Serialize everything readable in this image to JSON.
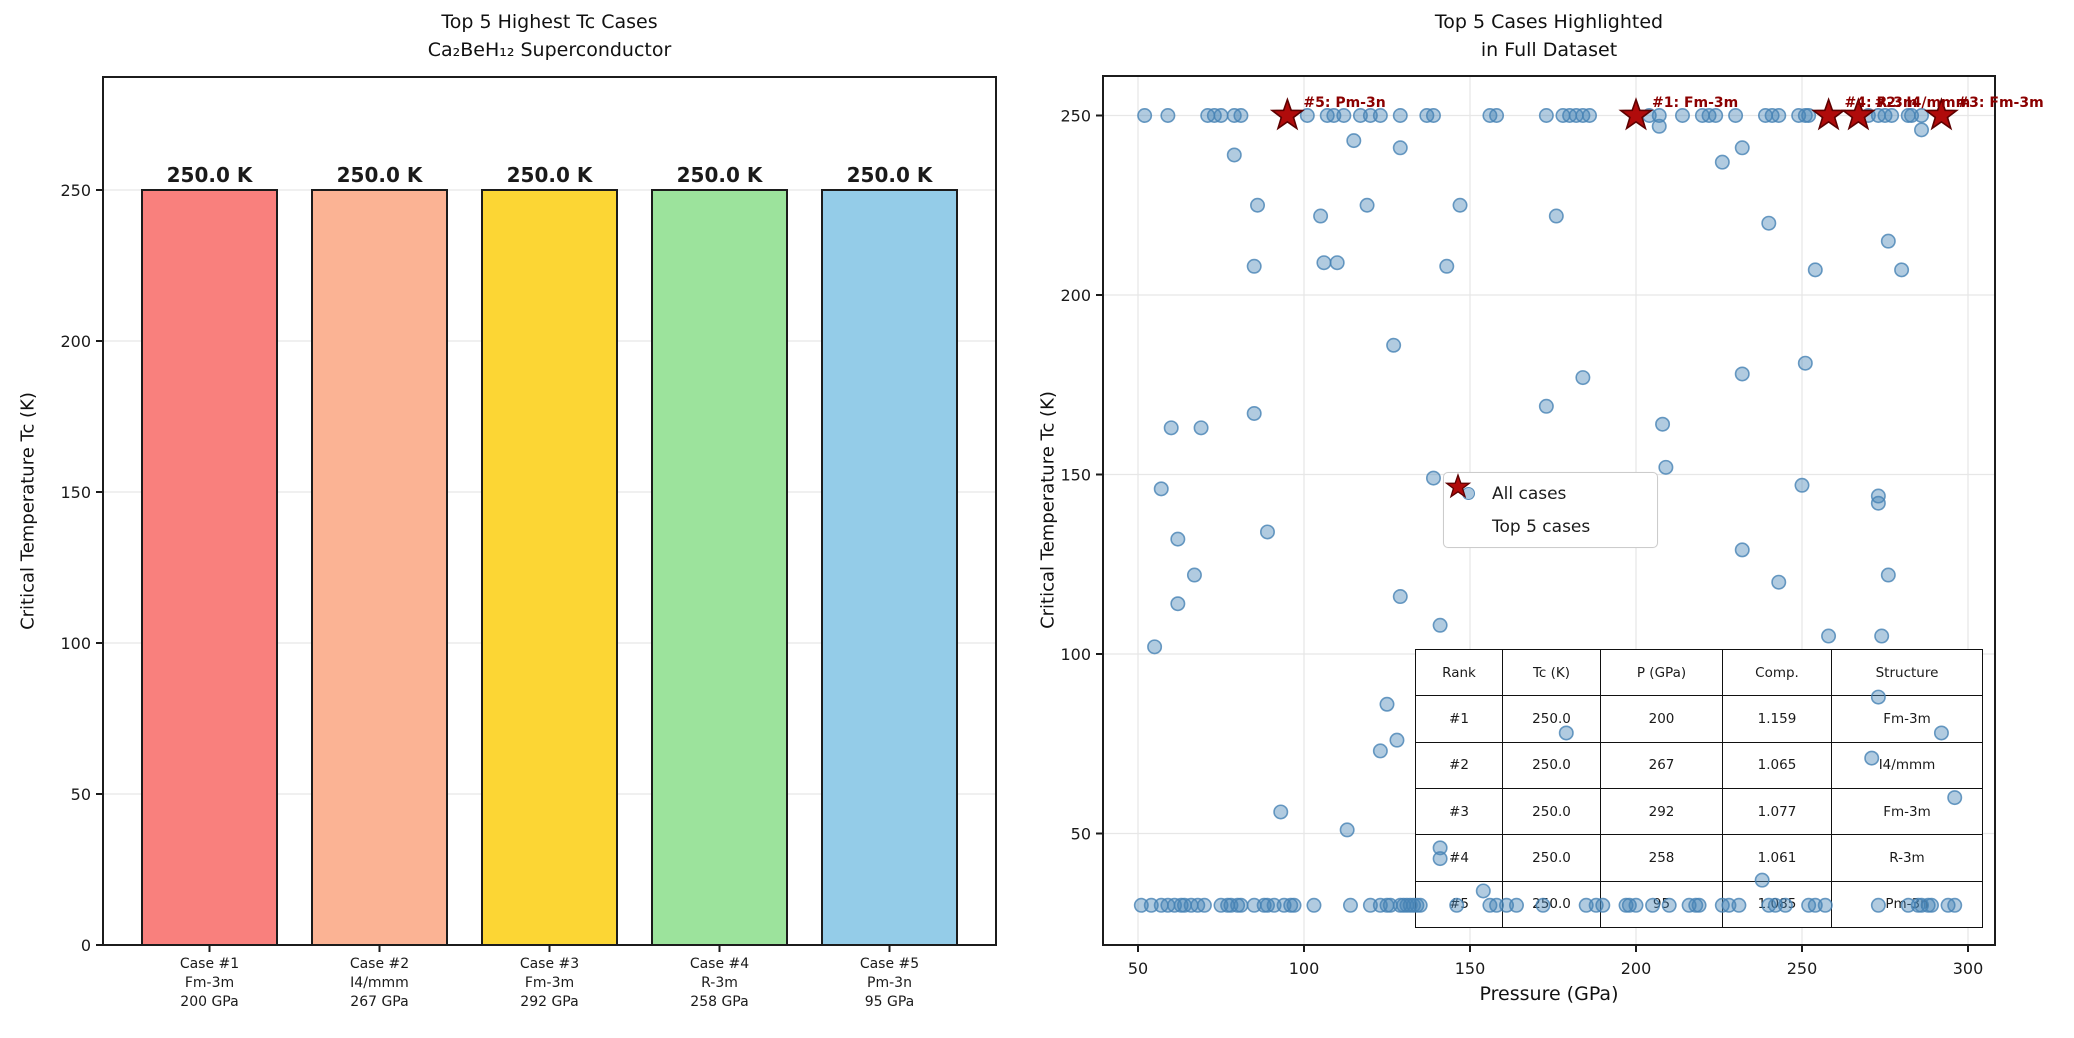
{
  "figure": {
    "background": "#ffffff"
  },
  "left_chart": {
    "title_line1": "Top 5 Highest Tc Cases",
    "title_line2": "Ca₂BeH₁₂ Superconductor",
    "ylabel": "Critical Temperature Tc (K)"
  },
  "right_chart": {
    "title_line1": "Top 5 Cases Highlighted",
    "title_line2": "in Full Dataset",
    "xlabel": "Pressure (GPa)",
    "ylabel": "Critical Temperature Tc (K)",
    "legend": {
      "all_cases": "All cases",
      "top5": "Top 5 cases"
    }
  },
  "colors": {
    "bar_edge": "#1c1c1c",
    "grid": "#e7e7e7",
    "spine": "#1c1c1c",
    "scatter_fill": "rgba(70,130,180,0.42)",
    "scatter_edge": "rgba(70,130,180,0.8)",
    "star_fill": "#b00b0b",
    "star_edge": "#5e0000",
    "annotation": "#8b0000"
  },
  "chart_data": [
    {
      "type": "bar",
      "title": "Top 5 Highest Tc Cases\nCa₂BeH₁₂ Superconductor",
      "ylabel": "Critical Temperature Tc (K)",
      "categories": [
        [
          "Case #1",
          "Fm-3m",
          "200 GPa"
        ],
        [
          "Case #2",
          "I4/mmm",
          "267 GPa"
        ],
        [
          "Case #3",
          "Fm-3m",
          "292 GPa"
        ],
        [
          "Case #4",
          "R-3m",
          "258 GPa"
        ],
        [
          "Case #5",
          "Pm-3n",
          "95 GPa"
        ]
      ],
      "values": [
        250.0,
        250.0,
        250.0,
        250.0,
        250.0
      ],
      "bar_labels": [
        "250.0 K",
        "250.0 K",
        "250.0 K",
        "250.0 K",
        "250.0 K"
      ],
      "bar_colors": [
        "#f9807d",
        "#fbb394",
        "#fcd634",
        "#9ce39c",
        "#94cce8"
      ],
      "yticks": [
        0,
        50,
        100,
        150,
        200,
        250
      ],
      "ylim": [
        0,
        287
      ],
      "grid": "horizontal"
    },
    {
      "type": "scatter",
      "title": "Top 5 Cases Highlighted\nin Full Dataset",
      "xlabel": "Pressure (GPa)",
      "ylabel": "Critical Temperature Tc (K)",
      "xticks": [
        50,
        100,
        150,
        200,
        250,
        300
      ],
      "yticks": [
        50,
        100,
        150,
        200,
        250
      ],
      "xlim": [
        39.5,
        308
      ],
      "ylim": [
        19,
        261
      ],
      "grid": "both",
      "legend_position": "center-left",
      "series": [
        {
          "name": "All cases",
          "marker": "circle",
          "points": [
            [
              52,
              250
            ],
            [
              59,
              250
            ],
            [
              71,
              250
            ],
            [
              73,
              250
            ],
            [
              75,
              250
            ],
            [
              79,
              250
            ],
            [
              81,
              250
            ],
            [
              95,
              250
            ],
            [
              101,
              250
            ],
            [
              107,
              250
            ],
            [
              109,
              250
            ],
            [
              112,
              250
            ],
            [
              117,
              250
            ],
            [
              120,
              250
            ],
            [
              123,
              250
            ],
            [
              129,
              250
            ],
            [
              137,
              250
            ],
            [
              139,
              250
            ],
            [
              156,
              250
            ],
            [
              158,
              250
            ],
            [
              173,
              250
            ],
            [
              178,
              250
            ],
            [
              180,
              250
            ],
            [
              182,
              250
            ],
            [
              184,
              250
            ],
            [
              186,
              250
            ],
            [
              200,
              250
            ],
            [
              204,
              250
            ],
            [
              207,
              250
            ],
            [
              214,
              250
            ],
            [
              220,
              250
            ],
            [
              222,
              250
            ],
            [
              224,
              250
            ],
            [
              230,
              250
            ],
            [
              239,
              250
            ],
            [
              241,
              250
            ],
            [
              243,
              250
            ],
            [
              249,
              250
            ],
            [
              251,
              250
            ],
            [
              252,
              250
            ],
            [
              258,
              250
            ],
            [
              267,
              250
            ],
            [
              270,
              250
            ],
            [
              273,
              250
            ],
            [
              275,
              250
            ],
            [
              277,
              250
            ],
            [
              282,
              250
            ],
            [
              283,
              250
            ],
            [
              286,
              250
            ],
            [
              292,
              250
            ],
            [
              207,
              247
            ],
            [
              286,
              246
            ],
            [
              115,
              243
            ],
            [
              129,
              241
            ],
            [
              232,
              241
            ],
            [
              79,
              239
            ],
            [
              226,
              237
            ],
            [
              86,
              225
            ],
            [
              119,
              225
            ],
            [
              147,
              225
            ],
            [
              105,
              222
            ],
            [
              176,
              222
            ],
            [
              240,
              220
            ],
            [
              276,
              215
            ],
            [
              85,
              208
            ],
            [
              106,
              209
            ],
            [
              110,
              209
            ],
            [
              143,
              208
            ],
            [
              254,
              207
            ],
            [
              280,
              207
            ],
            [
              127,
              186
            ],
            [
              251,
              181
            ],
            [
              232,
              178
            ],
            [
              184,
              177
            ],
            [
              173,
              169
            ],
            [
              85,
              167
            ],
            [
              208,
              164
            ],
            [
              60,
              163
            ],
            [
              69,
              163
            ],
            [
              209,
              152
            ],
            [
              139,
              149
            ],
            [
              250,
              147
            ],
            [
              57,
              146
            ],
            [
              273,
              144
            ],
            [
              273,
              142
            ],
            [
              89,
              134
            ],
            [
              62,
              132
            ],
            [
              232,
              129
            ],
            [
              67,
              122
            ],
            [
              276,
              122
            ],
            [
              243,
              120
            ],
            [
              129,
              116
            ],
            [
              62,
              114
            ],
            [
              141,
              108
            ],
            [
              258,
              105
            ],
            [
              274,
              105
            ],
            [
              55,
              102
            ],
            [
              273,
              88
            ],
            [
              125,
              86
            ],
            [
              179,
              78
            ],
            [
              292,
              78
            ],
            [
              128,
              76
            ],
            [
              123,
              73
            ],
            [
              271,
              71
            ],
            [
              296,
              60
            ],
            [
              93,
              56
            ],
            [
              113,
              51
            ],
            [
              141,
              46
            ],
            [
              141,
              43
            ],
            [
              238,
              37
            ],
            [
              154,
              34
            ],
            [
              51,
              30
            ],
            [
              54,
              30
            ],
            [
              57,
              30
            ],
            [
              59,
              30
            ],
            [
              61,
              30
            ],
            [
              63,
              30
            ],
            [
              64,
              30
            ],
            [
              66,
              30
            ],
            [
              68,
              30
            ],
            [
              70,
              30
            ],
            [
              75,
              30
            ],
            [
              77,
              30
            ],
            [
              78,
              30
            ],
            [
              80,
              30
            ],
            [
              81,
              30
            ],
            [
              85,
              30
            ],
            [
              88,
              30
            ],
            [
              89,
              30
            ],
            [
              91,
              30
            ],
            [
              94,
              30
            ],
            [
              96,
              30
            ],
            [
              97,
              30
            ],
            [
              103,
              30
            ],
            [
              114,
              30
            ],
            [
              120,
              30
            ],
            [
              123,
              30
            ],
            [
              125,
              30
            ],
            [
              126,
              30
            ],
            [
              129,
              30
            ],
            [
              130,
              30
            ],
            [
              131,
              30
            ],
            [
              132,
              30
            ],
            [
              133,
              30
            ],
            [
              134,
              30
            ],
            [
              135,
              30
            ],
            [
              146,
              30
            ],
            [
              156,
              30
            ],
            [
              158,
              30
            ],
            [
              161,
              30
            ],
            [
              164,
              30
            ],
            [
              172,
              30
            ],
            [
              185,
              30
            ],
            [
              188,
              30
            ],
            [
              190,
              30
            ],
            [
              197,
              30
            ],
            [
              198,
              30
            ],
            [
              200,
              30
            ],
            [
              205,
              30
            ],
            [
              210,
              30
            ],
            [
              216,
              30
            ],
            [
              218,
              30
            ],
            [
              219,
              30
            ],
            [
              226,
              30
            ],
            [
              228,
              30
            ],
            [
              231,
              30
            ],
            [
              240,
              30
            ],
            [
              242,
              30
            ],
            [
              245,
              30
            ],
            [
              252,
              30
            ],
            [
              254,
              30
            ],
            [
              257,
              30
            ],
            [
              273,
              30
            ],
            [
              282,
              30
            ],
            [
              285,
              30
            ],
            [
              286,
              30
            ],
            [
              288,
              30
            ],
            [
              289,
              30
            ],
            [
              294,
              30
            ],
            [
              296,
              30
            ]
          ]
        },
        {
          "name": "Top 5 cases",
          "marker": "star",
          "points": [
            [
              95,
              250
            ],
            [
              200,
              250
            ],
            [
              258,
              250
            ],
            [
              267,
              250
            ],
            [
              292,
              250
            ]
          ]
        }
      ],
      "annotations": [
        {
          "x": 95,
          "y": 250,
          "label": "#5: Pm-3n"
        },
        {
          "x": 200,
          "y": 250,
          "label": "#1: Fm-3m"
        },
        {
          "x": 258,
          "y": 250,
          "label": "#4: R-3m"
        },
        {
          "x": 267,
          "y": 250,
          "label": "#2: I4/mmm"
        },
        {
          "x": 292,
          "y": 250,
          "label": "#3: Fm-3m"
        }
      ],
      "table": {
        "headers": [
          "Rank",
          "Tc (K)",
          "P (GPa)",
          "Comp.",
          "Structure"
        ],
        "rows": [
          [
            "#1",
            "250.0",
            "200",
            "1.159",
            "Fm-3m"
          ],
          [
            "#2",
            "250.0",
            "267",
            "1.065",
            "I4/mmm"
          ],
          [
            "#3",
            "250.0",
            "292",
            "1.077",
            "Fm-3m"
          ],
          [
            "#4",
            "250.0",
            "258",
            "1.061",
            "R-3m"
          ],
          [
            "#5",
            "250.0",
            "95",
            "1.085",
            "Pm-3n"
          ]
        ]
      }
    }
  ]
}
